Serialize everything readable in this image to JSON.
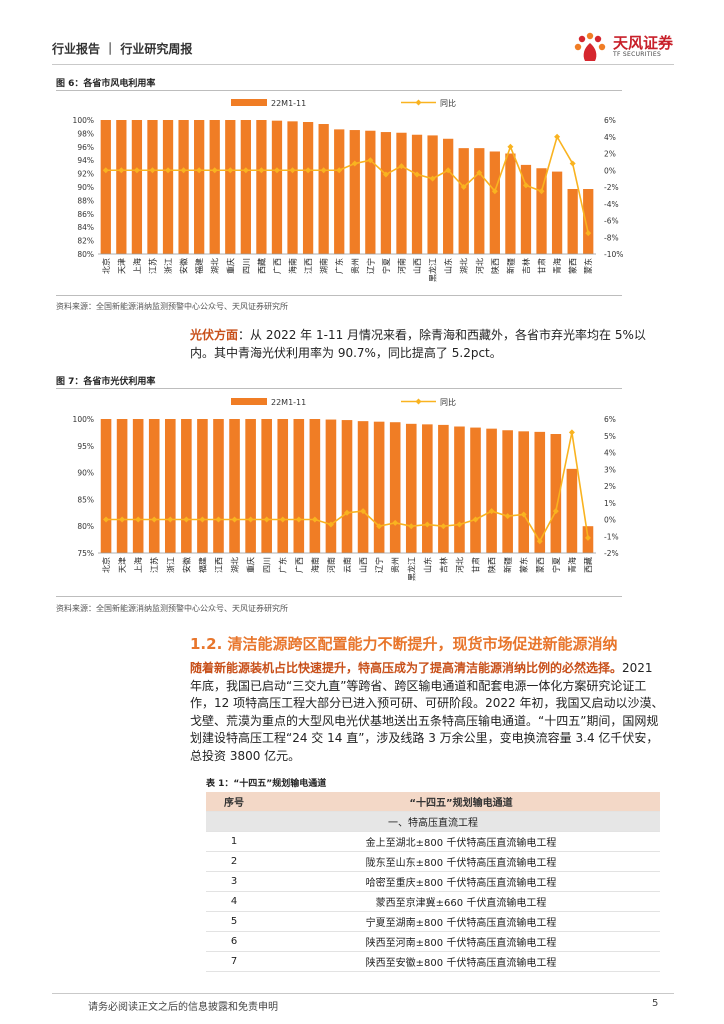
{
  "header": {
    "title": "行业报告 ｜ 行业研究周报",
    "logo_cn": "天风证券",
    "logo_en": "TF SECURITIES"
  },
  "figure6": {
    "title": "图 6：各省市风电利用率",
    "source": "资料来源：全国新能源消纳监测预警中心公众号、天风证券研究所",
    "chart_data": {
      "type": "bar",
      "categories": [
        "北京",
        "天津",
        "上海",
        "江苏",
        "浙江",
        "安徽",
        "福建",
        "湖北",
        "重庆",
        "四川",
        "西藏",
        "广西",
        "海南",
        "江西",
        "湖南",
        "广东",
        "贵州",
        "辽宁",
        "宁夏",
        "河南",
        "山西",
        "黑龙江",
        "山东",
        "湖北",
        "河北",
        "陕西",
        "新疆",
        "吉林",
        "甘肃",
        "青海",
        "蒙西",
        "蒙东"
      ],
      "series": [
        {
          "name": "22M1-11",
          "type": "bar",
          "color": "#f07d25",
          "values": [
            100,
            100,
            100,
            100,
            100,
            100,
            100,
            100,
            100,
            100,
            100,
            99.9,
            99.8,
            99.7,
            99.4,
            98.6,
            98.5,
            98.4,
            98.2,
            98.1,
            97.8,
            97.7,
            97.2,
            95.8,
            95.8,
            95.3,
            95.0,
            93.3,
            92.8,
            92.3,
            89.7,
            89.7
          ]
        },
        {
          "name": "同比",
          "type": "line",
          "color": "#f9b320",
          "values": [
            0,
            0,
            0,
            0,
            0,
            0,
            0,
            0,
            0,
            0,
            0,
            0,
            0,
            0,
            0,
            0,
            0.8,
            1.2,
            -0.5,
            0.5,
            -0.5,
            -1,
            0,
            -2,
            -0.3,
            -2.5,
            2.8,
            -1.8,
            -2.5,
            4,
            0.8,
            -7.5
          ]
        }
      ],
      "ylim_left": [
        80,
        100
      ],
      "yticks_left": [
        "80%",
        "82%",
        "84%",
        "86%",
        "88%",
        "90%",
        "92%",
        "94%",
        "96%",
        "98%",
        "100%"
      ],
      "ylim_right": [
        -10,
        6
      ],
      "yticks_right": [
        "-10%",
        "-8%",
        "-6%",
        "-4%",
        "-2%",
        "0%",
        "2%",
        "4%",
        "6%"
      ],
      "legend": "top"
    }
  },
  "para1": {
    "lead": "光伏方面",
    "text": "：从 2022 年 1-11 月情况来看，除青海和西藏外，各省市弃光率均在 5%以内。其中青海光伏利用率为 90.7%，同比提高了 5.2pct。"
  },
  "figure7": {
    "title": "图 7：各省市光伏利用率",
    "source": "资料来源：全国新能源消纳监测预警中心公众号、天风证券研究所",
    "chart_data": {
      "type": "bar",
      "categories": [
        "北京",
        "天津",
        "上海",
        "江苏",
        "浙江",
        "安徽",
        "福建",
        "江西",
        "湖北",
        "重庆",
        "四川",
        "广东",
        "广西",
        "海南",
        "河南",
        "云南",
        "山西",
        "辽宁",
        "贵州",
        "黑龙江",
        "山东",
        "吉林",
        "河北",
        "甘肃",
        "陕西",
        "新疆",
        "蒙东",
        "蒙西",
        "宁夏",
        "青海",
        "西藏"
      ],
      "series": [
        {
          "name": "22M1-11",
          "type": "bar",
          "color": "#f07d25",
          "values": [
            100,
            100,
            100,
            100,
            100,
            100,
            100,
            100,
            100,
            100,
            100,
            100,
            100,
            100,
            99.9,
            99.8,
            99.6,
            99.5,
            99.4,
            99.1,
            99.0,
            98.9,
            98.6,
            98.4,
            98.2,
            97.9,
            97.7,
            97.6,
            97.2,
            90.7,
            80.0
          ]
        },
        {
          "name": "同比",
          "type": "line",
          "color": "#f9b320",
          "values": [
            0,
            0,
            0,
            0,
            0,
            0,
            0,
            0,
            0,
            0,
            0,
            0,
            0,
            0,
            -0.3,
            0.4,
            0.5,
            -0.4,
            -0.2,
            -0.4,
            -0.3,
            -0.4,
            -0.3,
            0,
            0.5,
            0.2,
            0.3,
            -1.3,
            0.5,
            5.2,
            -1.1
          ]
        }
      ],
      "ylim_left": [
        75,
        100
      ],
      "yticks_left": [
        "75%",
        "80%",
        "85%",
        "90%",
        "95%",
        "100%"
      ],
      "ylim_right": [
        -2,
        6
      ],
      "yticks_right": [
        "-2%",
        "-1%",
        "0%",
        "1%",
        "2%",
        "3%",
        "4%",
        "5%",
        "6%"
      ],
      "legend": "top"
    }
  },
  "section": {
    "title": "1.2. 清洁能源跨区配置能力不断提升，现货市场促进新能源消纳"
  },
  "para2": {
    "lead": "随着新能源装机占比快速提升，特高压成为了提高清洁能源消纳比例的必然选择。",
    "text": "2021 年底，我国已启动“三交九直”等跨省、跨区输电通道和配套电源一体化方案研究论证工作，12 项特高压工程大部分已进入预可研、可研阶段。2022 年初，我国又启动以沙漠、戈壁、荒漠为重点的大型风电光伏基地送出五条特高压输电通道。“十四五”期间，国网规划建设特高压工程“24 交 14 直”，涉及线路 3 万余公里，变电换流容量 3.4 亿千伏安，总投资 3800 亿元。"
  },
  "table1": {
    "title": "表 1：“十四五”规划输电通道",
    "headers": [
      "序号",
      "“十四五”规划输电通道"
    ],
    "group": "一、特高压直流工程",
    "rows": [
      [
        "1",
        "金上至湖北±800 千伏特高压直流输电工程"
      ],
      [
        "2",
        "陇东至山东±800 千伏特高压直流输电工程"
      ],
      [
        "3",
        "哈密至重庆±800 千伏特高压直流输电工程"
      ],
      [
        "4",
        "蒙西至京津冀±660 千伏直流输电工程"
      ],
      [
        "5",
        "宁夏至湖南±800 千伏特高压直流输电工程"
      ],
      [
        "6",
        "陕西至河南±800 千伏特高压直流输电工程"
      ],
      [
        "7",
        "陕西至安徽±800 千伏特高压直流输电工程"
      ]
    ]
  },
  "footer": {
    "disclaimer": "请务必阅读正文之后的信息披露和免责申明",
    "page": "5"
  }
}
